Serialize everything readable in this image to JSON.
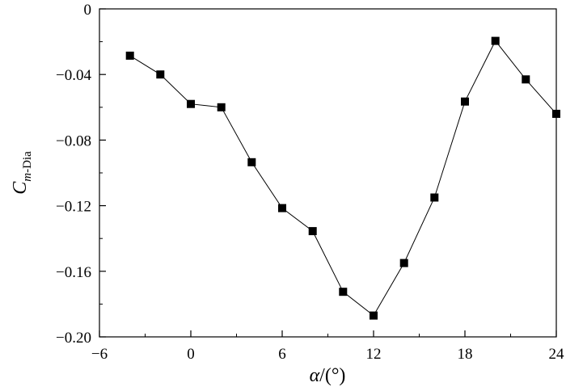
{
  "chart_data": {
    "type": "line",
    "title": "",
    "xlabel_italic": "α",
    "xlabel_rest": "/(°)",
    "ylabel_main": "C",
    "ylabel_sub_italic": "m",
    "ylabel_sub_rest": "-Dia",
    "xlim": [
      -6,
      24
    ],
    "ylim": [
      -0.2,
      0
    ],
    "x_ticks": [
      -6,
      0,
      6,
      12,
      18,
      24
    ],
    "x_tick_labels": [
      "−6",
      "0",
      "6",
      "12",
      "18",
      "24"
    ],
    "y_ticks": [
      0,
      -0.04,
      -0.08,
      -0.12,
      -0.16,
      -0.2
    ],
    "y_tick_labels": [
      "0",
      "−0.04",
      "−0.08",
      "−0.12",
      "−0.16",
      "−0.20"
    ],
    "grid": false,
    "legend": "none",
    "series": [
      {
        "marker": "square",
        "color": "#000000",
        "x": [
          -4,
          -2,
          0,
          2,
          4,
          6,
          8,
          10,
          12,
          14,
          16,
          18,
          20,
          22,
          24
        ],
        "y": [
          -0.0285,
          -0.04,
          -0.058,
          -0.06,
          -0.0935,
          -0.1215,
          -0.1355,
          -0.1725,
          -0.187,
          -0.155,
          -0.115,
          -0.0565,
          -0.0195,
          -0.043,
          -0.064
        ]
      }
    ]
  }
}
